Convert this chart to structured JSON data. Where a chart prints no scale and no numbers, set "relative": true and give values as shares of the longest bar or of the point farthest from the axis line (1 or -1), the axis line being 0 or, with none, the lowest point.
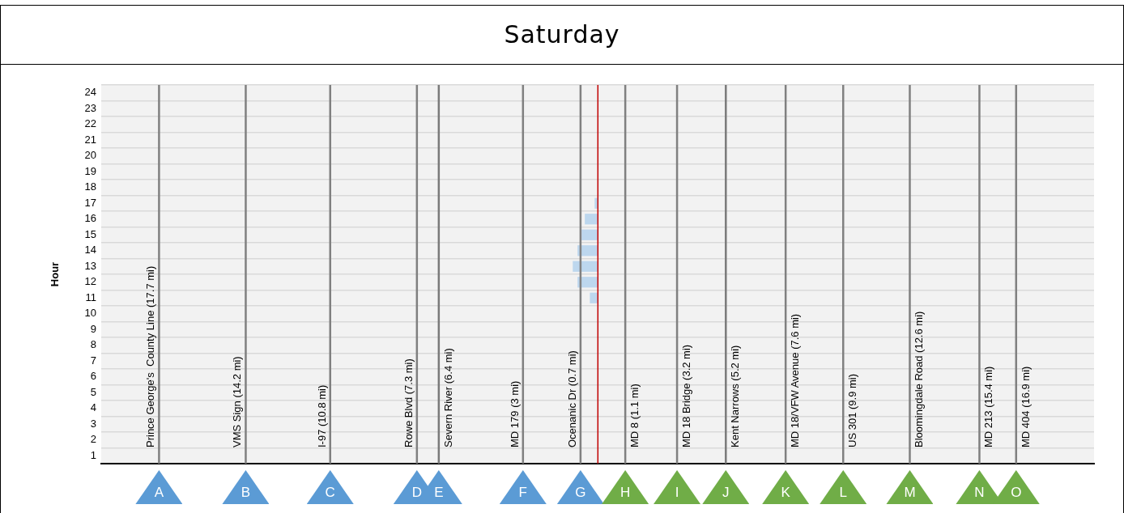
{
  "chart_data": {
    "type": "bar",
    "orientation": "horizontal",
    "relative": true,
    "title": "Saturday",
    "ylabel": "Hour",
    "grid": "y",
    "color": "#bdd7ee",
    "categories": [
      "24",
      "23",
      "22",
      "21",
      "20",
      "19",
      "18",
      "17",
      "16",
      "15",
      "14",
      "13",
      "12",
      "11",
      "10",
      "9",
      "8",
      "7",
      "6",
      "5",
      "4",
      "3",
      "2",
      "1"
    ],
    "values": [
      null,
      null,
      null,
      null,
      null,
      null,
      null,
      -0.13,
      -0.52,
      -0.65,
      -0.81,
      -1,
      -0.81,
      -0.32,
      null,
      null,
      null,
      null,
      null,
      null,
      null,
      null,
      null,
      null
    ],
    "ref_lines": [
      {
        "axis": "x",
        "value": -17.46,
        "label": "Prince George's  County Line (17.7 mi)",
        "color": "#808080"
      },
      {
        "axis": "x",
        "value": -14.01,
        "label": "VMS Sign (14.2 mi)",
        "color": "#808080"
      },
      {
        "axis": "x",
        "value": -10.65,
        "label": "I-97 (10.8 mi)",
        "color": "#808080"
      },
      {
        "axis": "x",
        "value": -7.2,
        "label": "Rowe Blvd (7.3 mi)",
        "color": "#808080"
      },
      {
        "axis": "x",
        "value": -6.33,
        "label": "Severn River (6.4 mi)",
        "color": "#7a7a7a"
      },
      {
        "axis": "x",
        "value": -2.98,
        "label": "MD 179 (3 mi)",
        "color": "#808080"
      },
      {
        "axis": "x",
        "value": -0.69,
        "label": "Ocenanic Dr (0.7 mi)",
        "color": "#808080"
      },
      {
        "axis": "x",
        "value": 0,
        "color": "#c00000"
      },
      {
        "axis": "x",
        "value": 1.09,
        "label": "MD 8 (1.1 mi)",
        "color": "#808080"
      },
      {
        "axis": "x",
        "value": 3.15,
        "label": "MD 18 Bridge (3.2 mi)",
        "color": "#808080"
      },
      {
        "axis": "x",
        "value": 5.09,
        "label": "Kent Narrows (5.2 mi)",
        "color": "#7a7a7a"
      },
      {
        "axis": "x",
        "value": 7.47,
        "label": "MD 18/VFW Avenue (7.6 mi)",
        "color": "#808080"
      },
      {
        "axis": "x",
        "value": 9.76,
        "label": "US 301 (9.9 mi)",
        "color": "#808080"
      },
      {
        "axis": "x",
        "value": 12.41,
        "label": "Bloomingdale Road (12.6 mi)",
        "color": "#808080"
      },
      {
        "axis": "x",
        "value": 15.18,
        "label": "MD 213 (15.4 mi)",
        "color": "#808080"
      },
      {
        "axis": "x",
        "value": 16.64,
        "label": "MD 404 (16.9 mi)",
        "color": "#808080"
      }
    ],
    "annotations": [
      "A",
      "B",
      "C",
      "D",
      "E",
      "F",
      "G",
      "H",
      "I",
      "J",
      "K",
      "L",
      "M",
      "N",
      "O"
    ]
  }
}
